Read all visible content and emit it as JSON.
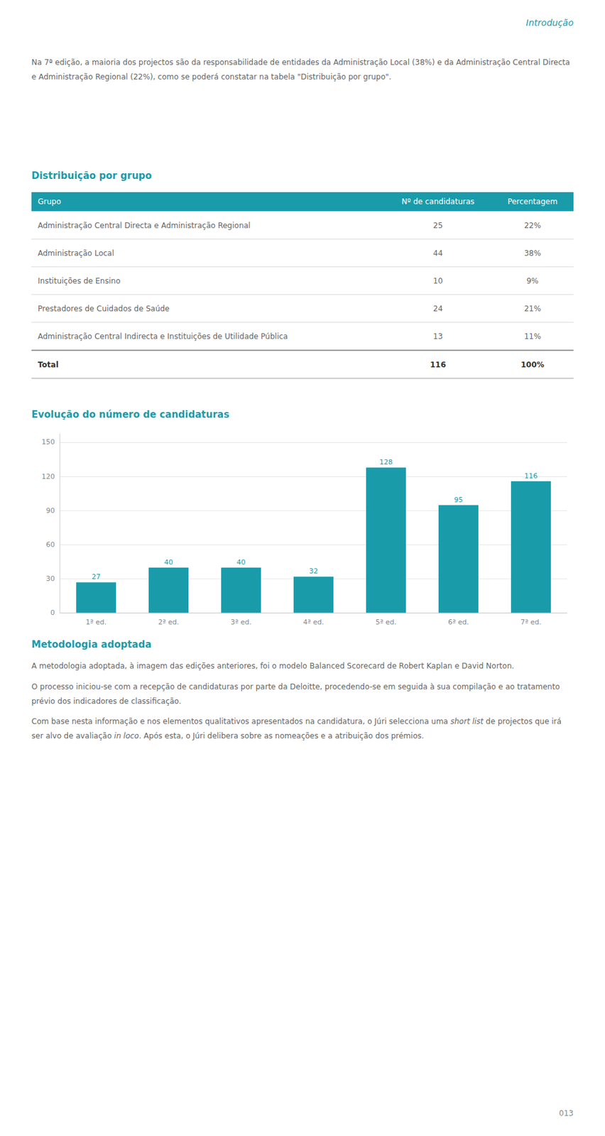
{
  "chart_data": {
    "type": "bar",
    "title": "Evolução do número de candidaturas",
    "categories": [
      "1ª ed.",
      "2ª ed.",
      "3ª ed.",
      "4ª ed.",
      "5ª ed.",
      "6ª ed.",
      "7ª ed."
    ],
    "values": [
      27,
      40,
      40,
      32,
      128,
      95,
      116
    ],
    "color": "#1a9baa",
    "ylim": [
      0,
      158
    ],
    "yticks": [
      0,
      30,
      60,
      90,
      120,
      150
    ],
    "grid": true,
    "data_labels": true
  },
  "page": {
    "intro_label": "Introdução",
    "intro_paragraph": "Na 7ª edição, a maioria dos projectos são da responsabilidade de entidades da Administração Local (38%) e da Administração Central Directa e Administração Regional (22%), como se poderá constatar na tabela \"Distribuição por grupo\".",
    "table": {
      "title": "Distribuição por grupo",
      "header": [
        "Grupo",
        "Nº de candidaturas",
        "Percentagem"
      ],
      "rows": [
        [
          "Administração Central Directa e Administração Regional",
          "25",
          "22%"
        ],
        [
          "Administração Local",
          "44",
          "38%"
        ],
        [
          "Instituições de Ensino",
          "10",
          "9%"
        ],
        [
          "Prestadores de Cuidados de Saúde",
          "24",
          "21%"
        ],
        [
          "Administração Central Indirecta e Instituições de Utilidade Pública",
          "13",
          "11%"
        ],
        [
          "Total",
          "116",
          "100%"
        ]
      ]
    },
    "section_title": "Metodologia adoptada",
    "method_paragraph1": "A metodologia adoptada, à imagem das edições anteriores, foi o modelo Balanced Scorecard de Robert Kaplan e David Norton.",
    "method_paragraph2": "O processo iniciou-se com a recepção de candidaturas por parte da Deloitte, procedendo-se em seguida à sua compilação e ao tratamento prévio dos indicadores de classificação.",
    "method_paragraph3_parts": [
      {
        "text": "Com base nesta informação e nos elementos qualitativos apresentados na candidatura, o Júri selecciona uma ",
        "italic": false
      },
      {
        "text": "short list",
        "italic": true
      },
      {
        "text": " de projectos que irá ser alvo de avaliação ",
        "italic": false
      },
      {
        "text": "in loco",
        "italic": true
      },
      {
        "text": ". Após esta, o Júri delibera sobre as nomeações e a atribuição dos prémios.",
        "italic": false
      }
    ],
    "page_number": "013"
  }
}
